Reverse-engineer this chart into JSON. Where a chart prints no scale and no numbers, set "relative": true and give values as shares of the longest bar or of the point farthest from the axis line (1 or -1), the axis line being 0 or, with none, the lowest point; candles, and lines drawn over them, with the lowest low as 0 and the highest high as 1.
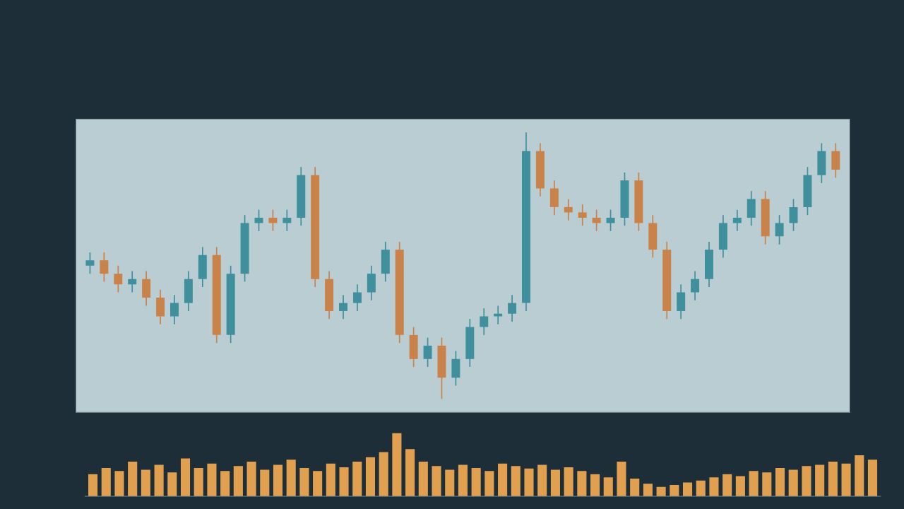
{
  "chart_data": [
    {
      "type": "candlestick",
      "relative": true,
      "tick_labels": false,
      "categories": [
        null,
        null,
        null,
        null,
        null,
        null,
        null,
        null,
        null,
        null,
        null,
        null,
        null,
        null,
        null,
        null,
        null,
        null,
        null,
        null,
        null,
        null,
        null,
        null,
        null,
        null,
        null,
        null,
        null,
        null,
        null,
        null,
        null,
        null,
        null,
        null,
        null,
        null,
        null,
        null,
        null,
        null,
        null,
        null,
        null,
        null,
        null,
        null,
        null,
        null,
        null,
        null,
        null,
        null
      ],
      "ohlc": [
        [
          0.5,
          0.55,
          0.47,
          0.52
        ],
        [
          0.52,
          0.55,
          0.44,
          0.47
        ],
        [
          0.47,
          0.5,
          0.4,
          0.43
        ],
        [
          0.43,
          0.48,
          0.4,
          0.45
        ],
        [
          0.45,
          0.48,
          0.35,
          0.38
        ],
        [
          0.38,
          0.41,
          0.28,
          0.31
        ],
        [
          0.31,
          0.39,
          0.28,
          0.36
        ],
        [
          0.36,
          0.48,
          0.33,
          0.45
        ],
        [
          0.45,
          0.57,
          0.42,
          0.54
        ],
        [
          0.54,
          0.57,
          0.21,
          0.24
        ],
        [
          0.24,
          0.5,
          0.21,
          0.47
        ],
        [
          0.47,
          0.69,
          0.44,
          0.66
        ],
        [
          0.66,
          0.71,
          0.63,
          0.68
        ],
        [
          0.68,
          0.71,
          0.63,
          0.66
        ],
        [
          0.66,
          0.71,
          0.63,
          0.68
        ],
        [
          0.68,
          0.87,
          0.65,
          0.84
        ],
        [
          0.84,
          0.87,
          0.42,
          0.45
        ],
        [
          0.45,
          0.48,
          0.3,
          0.33
        ],
        [
          0.33,
          0.39,
          0.3,
          0.36
        ],
        [
          0.36,
          0.43,
          0.33,
          0.4
        ],
        [
          0.4,
          0.5,
          0.37,
          0.47
        ],
        [
          0.47,
          0.59,
          0.44,
          0.56
        ],
        [
          0.56,
          0.59,
          0.21,
          0.24
        ],
        [
          0.24,
          0.27,
          0.12,
          0.15
        ],
        [
          0.15,
          0.23,
          0.12,
          0.2
        ],
        [
          0.2,
          0.23,
          0.0,
          0.08
        ],
        [
          0.08,
          0.18,
          0.05,
          0.15
        ],
        [
          0.15,
          0.3,
          0.12,
          0.27
        ],
        [
          0.27,
          0.34,
          0.24,
          0.31
        ],
        [
          0.31,
          0.35,
          0.28,
          0.32
        ],
        [
          0.32,
          0.39,
          0.29,
          0.36
        ],
        [
          0.36,
          1.0,
          0.33,
          0.93
        ],
        [
          0.93,
          0.96,
          0.76,
          0.79
        ],
        [
          0.79,
          0.82,
          0.69,
          0.72
        ],
        [
          0.72,
          0.75,
          0.67,
          0.7
        ],
        [
          0.7,
          0.73,
          0.65,
          0.68
        ],
        [
          0.68,
          0.71,
          0.63,
          0.66
        ],
        [
          0.66,
          0.71,
          0.63,
          0.68
        ],
        [
          0.68,
          0.85,
          0.65,
          0.82
        ],
        [
          0.82,
          0.85,
          0.63,
          0.66
        ],
        [
          0.66,
          0.69,
          0.53,
          0.56
        ],
        [
          0.56,
          0.59,
          0.3,
          0.33
        ],
        [
          0.33,
          0.43,
          0.3,
          0.4
        ],
        [
          0.4,
          0.48,
          0.37,
          0.45
        ],
        [
          0.45,
          0.59,
          0.42,
          0.56
        ],
        [
          0.56,
          0.69,
          0.53,
          0.66
        ],
        [
          0.66,
          0.71,
          0.63,
          0.68
        ],
        [
          0.68,
          0.78,
          0.65,
          0.75
        ],
        [
          0.75,
          0.78,
          0.58,
          0.61
        ],
        [
          0.61,
          0.69,
          0.58,
          0.66
        ],
        [
          0.66,
          0.75,
          0.63,
          0.72
        ],
        [
          0.72,
          0.87,
          0.69,
          0.84
        ],
        [
          0.84,
          0.96,
          0.81,
          0.93
        ],
        [
          0.93,
          0.96,
          0.83,
          0.86
        ]
      ],
      "colors": [
        "#3f8f9c",
        "#c9824a",
        "#c9824a",
        "#3f8f9c",
        "#c9824a",
        "#c9824a",
        "#3f8f9c",
        "#3f8f9c",
        "#3f8f9c",
        "#c9824a",
        "#3f8f9c",
        "#3f8f9c",
        "#3f8f9c",
        "#c9824a",
        "#3f8f9c",
        "#3f8f9c",
        "#c9824a",
        "#c9824a",
        "#3f8f9c",
        "#3f8f9c",
        "#3f8f9c",
        "#3f8f9c",
        "#c9824a",
        "#c9824a",
        "#3f8f9c",
        "#c9824a",
        "#3f8f9c",
        "#3f8f9c",
        "#3f8f9c",
        "#3f8f9c",
        "#3f8f9c",
        "#3f8f9c",
        "#c9824a",
        "#c9824a",
        "#c9824a",
        "#c9824a",
        "#c9824a",
        "#3f8f9c",
        "#3f8f9c",
        "#c9824a",
        "#c9824a",
        "#c9824a",
        "#3f8f9c",
        "#3f8f9c",
        "#3f8f9c",
        "#3f8f9c",
        "#3f8f9c",
        "#3f8f9c",
        "#c9824a",
        "#3f8f9c",
        "#3f8f9c",
        "#3f8f9c",
        "#3f8f9c",
        "#c9824a"
      ]
    },
    {
      "type": "bar",
      "relative": true,
      "tick_labels": false,
      "color": "#e0a050",
      "categories": [
        null,
        null,
        null,
        null,
        null,
        null,
        null,
        null,
        null,
        null,
        null,
        null,
        null,
        null,
        null,
        null,
        null,
        null,
        null,
        null,
        null,
        null,
        null,
        null,
        null,
        null,
        null,
        null,
        null,
        null,
        null,
        null,
        null,
        null,
        null,
        null,
        null,
        null,
        null,
        null,
        null,
        null,
        null,
        null,
        null,
        null,
        null,
        null,
        null,
        null,
        null,
        null,
        null,
        null,
        null,
        null,
        null,
        null,
        null,
        null
      ],
      "values": [
        0.35,
        0.45,
        0.4,
        0.55,
        0.42,
        0.5,
        0.38,
        0.6,
        0.45,
        0.52,
        0.4,
        0.48,
        0.55,
        0.42,
        0.5,
        0.58,
        0.45,
        0.4,
        0.52,
        0.46,
        0.55,
        0.62,
        0.7,
        1.0,
        0.75,
        0.55,
        0.48,
        0.42,
        0.5,
        0.45,
        0.4,
        0.52,
        0.48,
        0.44,
        0.5,
        0.42,
        0.46,
        0.4,
        0.35,
        0.3,
        0.55,
        0.28,
        0.2,
        0.15,
        0.18,
        0.22,
        0.25,
        0.3,
        0.35,
        0.32,
        0.4,
        0.38,
        0.45,
        0.42,
        0.48,
        0.5,
        0.55,
        0.52,
        0.65,
        0.58
      ]
    }
  ]
}
